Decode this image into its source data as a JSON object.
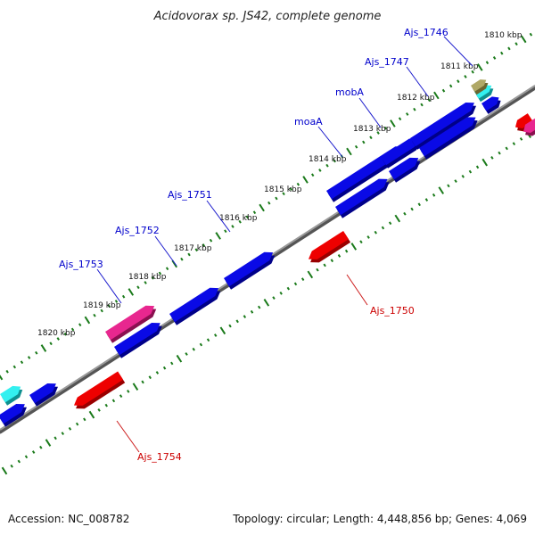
{
  "title": "Acidovorax sp. JS42, complete genome",
  "footer": {
    "accession": "Accession: NC_008782",
    "summary": "Topology: circular; Length: 4,448,856 bp; Genes: 4,069"
  },
  "ruler": {
    "labels": [
      "1810 kbp",
      "1811 kbp",
      "1812 kbp",
      "1813 kbp",
      "1814 kbp",
      "1815 kbp",
      "1816 kbp",
      "1817 kbp",
      "1818 kbp",
      "1819 kbp",
      "1820 kbp"
    ]
  },
  "gene_labels": [
    {
      "id": "ajs1746",
      "text": "Ajs_1746",
      "strand": "forward"
    },
    {
      "id": "ajs1747",
      "text": "Ajs_1747",
      "strand": "forward"
    },
    {
      "id": "moba",
      "text": "mobA",
      "strand": "forward"
    },
    {
      "id": "moaa",
      "text": "moaA",
      "strand": "forward"
    },
    {
      "id": "ajs1751",
      "text": "Ajs_1751",
      "strand": "forward"
    },
    {
      "id": "ajs1752",
      "text": "Ajs_1752",
      "strand": "forward"
    },
    {
      "id": "ajs1753",
      "text": "Ajs_1753",
      "strand": "forward"
    },
    {
      "id": "ajs1750",
      "text": "Ajs_1750",
      "strand": "reverse"
    },
    {
      "id": "ajs1754",
      "text": "Ajs_1754",
      "strand": "reverse"
    }
  ],
  "colors": {
    "forward_label": "#0000cc",
    "reverse_label": "#cc0000",
    "cds_blue": "#0a0ae6",
    "cds_blue_dark": "#000088",
    "cds_red": "#ee0000",
    "cds_red_dark": "#990000",
    "cds_pink": "#e8278f",
    "cds_pink_dark": "#8a1050",
    "cds_cyan": "#33f0f0",
    "cds_olive": "#b0a866",
    "tick_green": "#1a7a1a",
    "backbone": "#777777"
  }
}
